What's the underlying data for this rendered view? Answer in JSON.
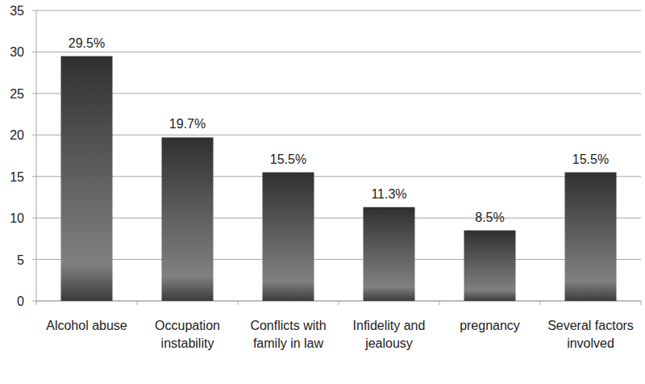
{
  "chart_data": {
    "type": "bar",
    "categories": [
      "Alcohol abuse",
      "Occupation instability",
      "Conflicts with family in law",
      "Infidelity and jealousy",
      "pregnancy",
      "Several factors involved"
    ],
    "values": [
      29.5,
      19.7,
      15.5,
      11.3,
      8.5,
      15.5
    ],
    "value_labels": [
      "29.5%",
      "19.7%",
      "15.5%",
      "11.3%",
      "8.5%",
      "15.5%"
    ],
    "data_labels": true,
    "color": "#4a4a4a",
    "ylim": [
      0,
      35
    ],
    "yticks": [
      0,
      5,
      10,
      15,
      20,
      25,
      30,
      35
    ],
    "grid": true
  }
}
